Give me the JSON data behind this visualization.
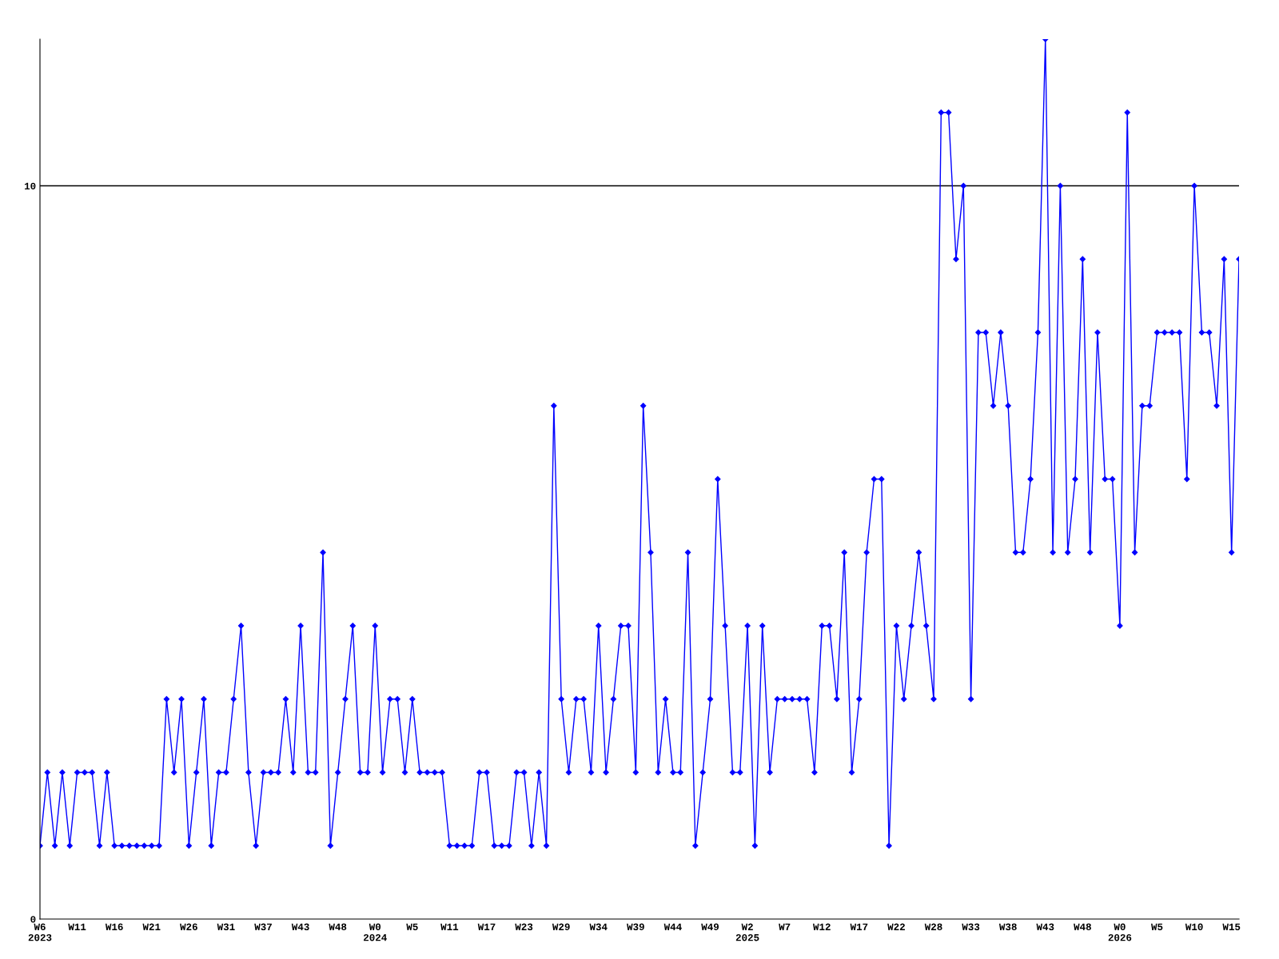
{
  "chart_data": {
    "type": "line",
    "categories": [
      "W6\n2023",
      null,
      null,
      null,
      null,
      "W11",
      null,
      null,
      null,
      null,
      "W16",
      null,
      null,
      null,
      null,
      "W21",
      null,
      null,
      null,
      null,
      "W26",
      null,
      null,
      null,
      null,
      "W31",
      null,
      null,
      null,
      null,
      "W37",
      null,
      null,
      null,
      null,
      "W43",
      null,
      null,
      null,
      null,
      "W48",
      null,
      null,
      null,
      null,
      "W0\n2024",
      null,
      null,
      null,
      null,
      "W5",
      null,
      null,
      null,
      null,
      "W11",
      null,
      null,
      null,
      null,
      "W17",
      null,
      null,
      null,
      null,
      "W23",
      null,
      null,
      null,
      null,
      "W29",
      null,
      null,
      null,
      null,
      "W34",
      null,
      null,
      null,
      null,
      "W39",
      null,
      null,
      null,
      null,
      "W44",
      null,
      null,
      null,
      null,
      "W49",
      null,
      null,
      null,
      null,
      "W2\n2025",
      null,
      null,
      null,
      null,
      "W7",
      null,
      null,
      null,
      null,
      "W12",
      null,
      null,
      null,
      null,
      "W17",
      null,
      null,
      null,
      null,
      "W22",
      null,
      null,
      null,
      null,
      "W28",
      null,
      null,
      null,
      null,
      "W33",
      null,
      null,
      null,
      null,
      "W38",
      null,
      null,
      null,
      null,
      "W43",
      null,
      null,
      null,
      null,
      "W48",
      null,
      null,
      null,
      null,
      "W0\n2026",
      null,
      null,
      null,
      null,
      "W5",
      null,
      null,
      null,
      null,
      "W10",
      null,
      null,
      null,
      null,
      "W15",
      null
    ],
    "series": [
      {
        "color": "#0000ff",
        "values": [
          1,
          2,
          1,
          2,
          1,
          2,
          2,
          2,
          1,
          2,
          1,
          1,
          1,
          1,
          1,
          1,
          1,
          3,
          2,
          3,
          1,
          2,
          3,
          1,
          2,
          2,
          3,
          4,
          2,
          1,
          2,
          2,
          2,
          3,
          2,
          4,
          2,
          2,
          5,
          1,
          2,
          3,
          4,
          2,
          2,
          4,
          2,
          3,
          3,
          2,
          3,
          2,
          2,
          2,
          2,
          1,
          1,
          1,
          1,
          2,
          2,
          1,
          1,
          1,
          2,
          2,
          1,
          2,
          1,
          7,
          3,
          2,
          3,
          3,
          2,
          4,
          2,
          3,
          4,
          4,
          2,
          7,
          5,
          2,
          3,
          2,
          2,
          5,
          1,
          2,
          3,
          6,
          4,
          2,
          2,
          4,
          1,
          4,
          2,
          3,
          3,
          3,
          3,
          3,
          2,
          4,
          4,
          3,
          5,
          2,
          3,
          5,
          6,
          6,
          1,
          4,
          3,
          4,
          5,
          4,
          3,
          11,
          11,
          9,
          10,
          3,
          8,
          8,
          7,
          8,
          7,
          5,
          5,
          6,
          8,
          12,
          5,
          10,
          5,
          6,
          9,
          5,
          8,
          6,
          6,
          4,
          11,
          5,
          7,
          7,
          8,
          8,
          8,
          8,
          6,
          10,
          8,
          8,
          7,
          9,
          5,
          9
        ]
      }
    ],
    "ylim": [
      0,
      12
    ],
    "yticks": [
      0,
      10
    ],
    "ref_lines": [
      {
        "axis": "y",
        "value": 10,
        "color": "#000000"
      }
    ],
    "marker": "diamond",
    "line_style": "solid",
    "grid": false,
    "legend": false
  }
}
